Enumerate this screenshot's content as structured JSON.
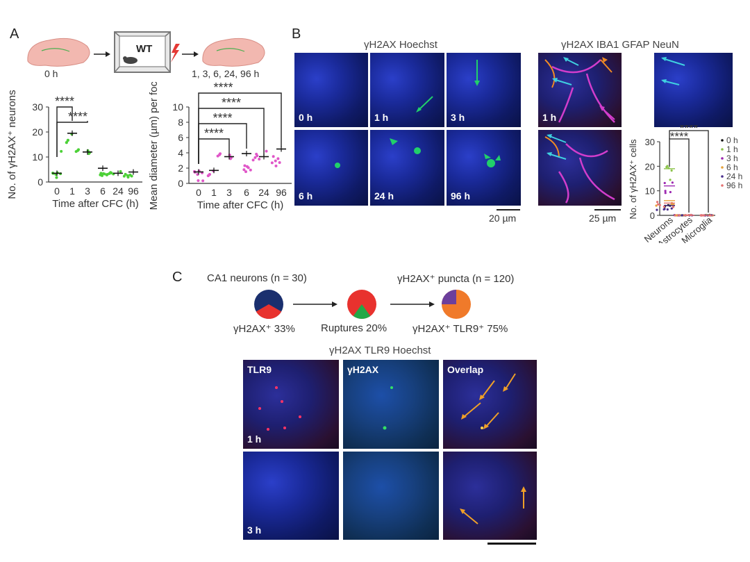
{
  "panel_a": {
    "letter": "A",
    "schematic": {
      "start_label": "0 h",
      "box_label": "WT",
      "end_label": "1, 3, 6, 24, 96  h"
    }
  },
  "panel_b": {
    "letter": "B",
    "title_left": "γH2AX Hoechst",
    "title_right": "γH2AX IBA1 GFAP NeuN",
    "tiles": [
      {
        "label": "0 h"
      },
      {
        "label": "1 h"
      },
      {
        "label": "3 h"
      },
      {
        "label": "6 h"
      },
      {
        "label": "24 h"
      },
      {
        "label": "96 h"
      }
    ],
    "right_tiles": [
      {
        "label": "1 h"
      },
      {
        "label": ""
      }
    ],
    "scale_left": "20 µm",
    "scale_right": "25 µm"
  },
  "panel_c": {
    "letter": "C",
    "left_header": "CA1 neurons (n = 30)",
    "right_header": "γH2AX⁺ puncta (n = 120)",
    "pie1_label": "γH2AX⁺ 33%",
    "pie2_label": "Ruptures 20%",
    "pie3_label": "γH2AX⁺ TLR9⁺ 75%",
    "micrograph_title": "γH2AX TLR9 Hoechst",
    "columns": [
      "TLR9",
      "γH2AX",
      "Overlap"
    ],
    "rows": [
      "1 h",
      "3 h"
    ]
  },
  "colors": {
    "navy": "#1a2f6e",
    "red": "#e8322e",
    "green": "#22a847",
    "purple": "#6c3f9c",
    "orange": "#f07a2a",
    "point_green": "#4cd137",
    "point_pink": "#e056c8"
  },
  "chart_data": [
    {
      "type": "scatter",
      "ylabel": "No. of γH2AX⁺ neurons",
      "xlabel": "Time after CFC (h)",
      "categories": [
        "0",
        "1",
        "3",
        "6",
        "24",
        "96"
      ],
      "means": [
        3.5,
        19.5,
        12,
        5.5,
        3.5,
        4
      ],
      "ylim": [
        0,
        30
      ],
      "yticks": [
        0,
        10,
        20,
        30
      ],
      "significance": [
        {
          "from": "0",
          "to": "1",
          "label": "****"
        },
        {
          "from": "0",
          "to": "3",
          "label": "****"
        }
      ]
    },
    {
      "type": "scatter",
      "ylabel": "Mean diameter (µm) per foci",
      "xlabel": "Time after CFC (h)",
      "categories": [
        "0",
        "1",
        "3",
        "6",
        "24",
        "96"
      ],
      "means": [
        1.5,
        1.7,
        3.5,
        3.9,
        3.5,
        4.5
      ],
      "ylim": [
        0,
        10
      ],
      "yticks": [
        0,
        2,
        4,
        6,
        8,
        10
      ],
      "significance": [
        {
          "from": "0",
          "to": "3",
          "label": "****"
        },
        {
          "from": "0",
          "to": "6",
          "label": "****"
        },
        {
          "from": "0",
          "to": "24",
          "label": "****"
        },
        {
          "from": "0",
          "to": "96",
          "label": "****"
        }
      ]
    },
    {
      "type": "scatter",
      "ylabel": "No. of γH2AX⁺ cells",
      "categories": [
        "Neurons",
        "Astrocytes",
        "Microglia"
      ],
      "legend": [
        "0 h",
        "1 h",
        "3 h",
        "6 h",
        "24 h",
        "96 h"
      ],
      "legend_colors": [
        "#111111",
        "#8bc34a",
        "#9c27b0",
        "#e6a23c",
        "#4a2f8c",
        "#e57373"
      ],
      "ylim": [
        0,
        30
      ],
      "yticks": [
        0,
        10,
        20,
        30
      ],
      "series": [
        {
          "name": "0 h",
          "values": [
            4,
            0,
            0
          ]
        },
        {
          "name": "1 h",
          "values": [
            19,
            0,
            0
          ]
        },
        {
          "name": "3 h",
          "values": [
            12,
            0,
            0
          ]
        },
        {
          "name": "6 h",
          "values": [
            6,
            0,
            0
          ]
        },
        {
          "name": "24 h",
          "values": [
            4,
            0,
            0
          ]
        },
        {
          "name": "96 h",
          "values": [
            5,
            0,
            0
          ]
        }
      ],
      "significance": [
        {
          "from": "Neurons",
          "to": "Astrocytes",
          "label": "****"
        },
        {
          "from": "Neurons",
          "to": "Microglia",
          "label": "****"
        }
      ]
    }
  ]
}
